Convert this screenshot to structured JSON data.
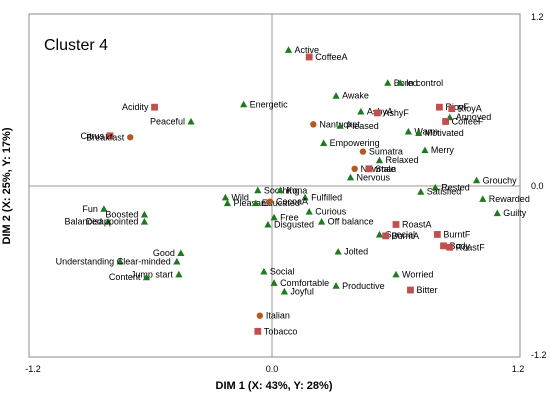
{
  "chart_data": {
    "type": "scatter",
    "title": "Cluster 4",
    "xlabel": "DIM 1 (X: 43%, Y: 28%)",
    "ylabel": "DIM 2 (X: 25%, Y: 17%)",
    "xlim": [
      -1.2,
      1.2
    ],
    "ylim": [
      -1.2,
      1.2
    ],
    "x_tick_labels": [
      "-1.2",
      "0.0",
      "1.2"
    ],
    "y_tick_labels": [
      "1.2",
      "0.0",
      "-1.2"
    ],
    "grid": false,
    "colors": {
      "triangle": "#1e7a1e",
      "square": "#c0504d",
      "circle": "#b45a1e",
      "axis": "#999999"
    },
    "points": [
      {
        "label": "Active",
        "x": 0.08,
        "y": 0.95,
        "marker": "triangle"
      },
      {
        "label": "CoffeeA",
        "x": 0.18,
        "y": 0.9,
        "marker": "square"
      },
      {
        "label": "Bored",
        "x": 0.56,
        "y": 0.72,
        "marker": "triangle"
      },
      {
        "label": "In control",
        "x": 0.62,
        "y": 0.72,
        "marker": "triangle"
      },
      {
        "label": "Awake",
        "x": 0.31,
        "y": 0.63,
        "marker": "triangle"
      },
      {
        "label": "RioyF",
        "x": 0.81,
        "y": 0.55,
        "marker": "square"
      },
      {
        "label": "RioyA",
        "x": 0.87,
        "y": 0.54,
        "marker": "square"
      },
      {
        "label": "Acidity",
        "x": -0.58,
        "y": 0.55,
        "marker": "square"
      },
      {
        "label": "Energetic",
        "x": -0.14,
        "y": 0.57,
        "marker": "triangle"
      },
      {
        "label": "AshyA",
        "x": 0.43,
        "y": 0.52,
        "marker": "triangle"
      },
      {
        "label": "AshyF",
        "x": 0.51,
        "y": 0.51,
        "marker": "square"
      },
      {
        "label": "Annoyed",
        "x": 0.86,
        "y": 0.48,
        "marker": "triangle"
      },
      {
        "label": "CoffeeF",
        "x": 0.84,
        "y": 0.45,
        "marker": "square"
      },
      {
        "label": "Peaceful",
        "x": -0.4,
        "y": 0.45,
        "marker": "triangle"
      },
      {
        "label": "Nantucket",
        "x": 0.2,
        "y": 0.43,
        "marker": "circle"
      },
      {
        "label": "Pleased",
        "x": 0.33,
        "y": 0.42,
        "marker": "triangle"
      },
      {
        "label": "Warm",
        "x": 0.66,
        "y": 0.38,
        "marker": "triangle"
      },
      {
        "label": "Motivated",
        "x": 0.71,
        "y": 0.37,
        "marker": "triangle"
      },
      {
        "label": "Citrus",
        "x": -0.8,
        "y": 0.35,
        "marker": "square"
      },
      {
        "label": "Breakfast",
        "x": -0.7,
        "y": 0.34,
        "marker": "circle"
      },
      {
        "label": "Empowering",
        "x": 0.25,
        "y": 0.3,
        "marker": "triangle"
      },
      {
        "label": "Merry",
        "x": 0.74,
        "y": 0.25,
        "marker": "triangle"
      },
      {
        "label": "Sumatra",
        "x": 0.44,
        "y": 0.24,
        "marker": "circle"
      },
      {
        "label": "Relaxed",
        "x": 0.52,
        "y": 0.18,
        "marker": "triangle"
      },
      {
        "label": "Newman",
        "x": 0.4,
        "y": 0.12,
        "marker": "circle"
      },
      {
        "label": "Stale",
        "x": 0.47,
        "y": 0.12,
        "marker": "square"
      },
      {
        "label": "Nervous",
        "x": 0.38,
        "y": 0.06,
        "marker": "triangle"
      },
      {
        "label": "Grouchy",
        "x": 0.99,
        "y": 0.04,
        "marker": "triangle"
      },
      {
        "label": "Rested",
        "x": 0.79,
        "y": -0.01,
        "marker": "triangle"
      },
      {
        "label": "Satisfied",
        "x": 0.72,
        "y": -0.04,
        "marker": "triangle"
      },
      {
        "label": "Soothing",
        "x": -0.07,
        "y": -0.03,
        "marker": "triangle"
      },
      {
        "label": "Kona",
        "x": 0.04,
        "y": -0.03,
        "marker": "triangle"
      },
      {
        "label": "Wild",
        "x": -0.23,
        "y": -0.08,
        "marker": "triangle"
      },
      {
        "label": "Fulfilled",
        "x": 0.16,
        "y": -0.08,
        "marker": "triangle"
      },
      {
        "label": "Rewarded",
        "x": 1.02,
        "y": -0.09,
        "marker": "triangle"
      },
      {
        "label": "Pleasant",
        "x": -0.22,
        "y": -0.12,
        "marker": "triangle"
      },
      {
        "label": "Educated",
        "x": -0.08,
        "y": -0.12,
        "marker": "triangle"
      },
      {
        "label": "CocoaA",
        "x": -0.01,
        "y": -0.11,
        "marker": "circle"
      },
      {
        "label": "Fun",
        "x": -0.83,
        "y": -0.16,
        "marker": "triangle"
      },
      {
        "label": "Curious",
        "x": 0.18,
        "y": -0.18,
        "marker": "triangle"
      },
      {
        "label": "Guilty",
        "x": 1.09,
        "y": -0.19,
        "marker": "triangle"
      },
      {
        "label": "Boosted",
        "x": -0.63,
        "y": -0.2,
        "marker": "triangle"
      },
      {
        "label": "Free",
        "x": 0.01,
        "y": -0.22,
        "marker": "triangle"
      },
      {
        "label": "Off balance",
        "x": 0.24,
        "y": -0.25,
        "marker": "triangle"
      },
      {
        "label": "Balanced",
        "x": -0.81,
        "y": -0.25,
        "marker": "triangle"
      },
      {
        "label": "Disappointed",
        "x": -0.63,
        "y": -0.25,
        "marker": "triangle"
      },
      {
        "label": "Disgusted",
        "x": -0.02,
        "y": -0.27,
        "marker": "triangle"
      },
      {
        "label": "RoastA",
        "x": 0.6,
        "y": -0.27,
        "marker": "square"
      },
      {
        "label": "Special",
        "x": 0.52,
        "y": -0.34,
        "marker": "triangle"
      },
      {
        "label": "BurntA",
        "x": 0.55,
        "y": -0.35,
        "marker": "square"
      },
      {
        "label": "BurntF",
        "x": 0.8,
        "y": -0.34,
        "marker": "square"
      },
      {
        "label": "Body",
        "x": 0.83,
        "y": -0.42,
        "marker": "square"
      },
      {
        "label": "RoastF",
        "x": 0.86,
        "y": -0.43,
        "marker": "square"
      },
      {
        "label": "Jolted",
        "x": 0.32,
        "y": -0.46,
        "marker": "triangle"
      },
      {
        "label": "Good",
        "x": -0.45,
        "y": -0.47,
        "marker": "triangle"
      },
      {
        "label": "Understanding",
        "x": -0.75,
        "y": -0.53,
        "marker": "triangle"
      },
      {
        "label": "Clear-minded",
        "x": -0.47,
        "y": -0.53,
        "marker": "triangle"
      },
      {
        "label": "Social",
        "x": -0.04,
        "y": -0.6,
        "marker": "triangle"
      },
      {
        "label": "Worried",
        "x": 0.6,
        "y": -0.62,
        "marker": "triangle"
      },
      {
        "label": "Jump start",
        "x": -0.46,
        "y": -0.62,
        "marker": "triangle"
      },
      {
        "label": "Content",
        "x": -0.62,
        "y": -0.64,
        "marker": "triangle"
      },
      {
        "label": "Comfortable",
        "x": 0.01,
        "y": -0.68,
        "marker": "triangle"
      },
      {
        "label": "Productive",
        "x": 0.31,
        "y": -0.7,
        "marker": "triangle"
      },
      {
        "label": "Bitter",
        "x": 0.67,
        "y": -0.73,
        "marker": "square"
      },
      {
        "label": "Joyful",
        "x": 0.06,
        "y": -0.74,
        "marker": "triangle"
      },
      {
        "label": "Italian",
        "x": -0.06,
        "y": -0.91,
        "marker": "circle"
      },
      {
        "label": "Tobacco",
        "x": -0.07,
        "y": -1.02,
        "marker": "square"
      }
    ]
  }
}
